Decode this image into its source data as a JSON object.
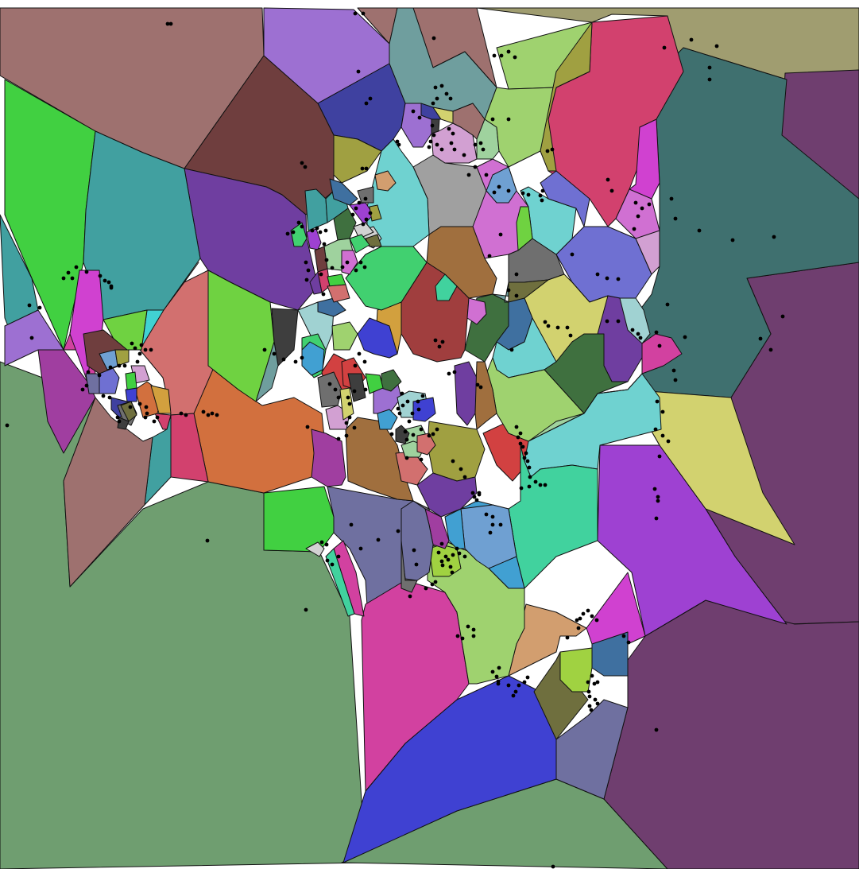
{
  "diagram": {
    "type": "voronoi",
    "background": "#ffffff",
    "edge_color": "#111111",
    "site_color": "#000000"
  },
  "palette": {
    "olive_khaki": "#a09d70",
    "rose_brown": "#9e716f",
    "sage_green": "#6f9e70",
    "plum": "#6f3e6f",
    "dark_teal": "#3f706f",
    "crimson_pink": "#d2416e",
    "violet": "#9d70d2",
    "light_green": "#9fd26f",
    "steel_teal": "#6f9e9e",
    "royal_blue": "#3f41d2",
    "bright_green": "#41d041",
    "magenta_purple": "#9e41d2",
    "orange_clay": "#d2703e",
    "indigo": "#3f41a0",
    "cyan": "#41d2d2",
    "khaki_yellow": "#d2d26f",
    "dark_brown": "#6f3e3e",
    "deep_purple": "#6f3ea0",
    "light_periwinkle": "#6f70d2",
    "grey": "#a0a0a0",
    "salmon": "#d2706f",
    "orchid": "#d070d2",
    "lime": "#6fd241",
    "tan": "#d29e6f",
    "slate_blue": "#6f70a0",
    "pale_green": "#9fd29e",
    "mint_cyan": "#6fd2d0",
    "moss": "#6f6f3e",
    "magenta": "#d041d0",
    "brown_orange": "#a06f3e",
    "forest": "#3f703f",
    "dark_grey": "#6f6f6f",
    "light_cyan": "#a0d2d2",
    "red_brown": "#a03e3e",
    "teal": "#41a0a0",
    "bright_red": "#d24141",
    "mustard": "#d2a03e",
    "sea_green": "#41d29e",
    "hot_pink": "#d241a0",
    "ocean": "#41a0d2",
    "purple_magenta": "#a03ea0",
    "steel_blue": "#3f70a0",
    "light_orchid": "#d2a0d2",
    "yellow_green": "#a0d241",
    "light_blue": "#6fa0d2",
    "olive": "#a0a041",
    "charcoal": "#3e3e3e",
    "off_white": "#d2d2d2",
    "emerald": "#41d070"
  }
}
